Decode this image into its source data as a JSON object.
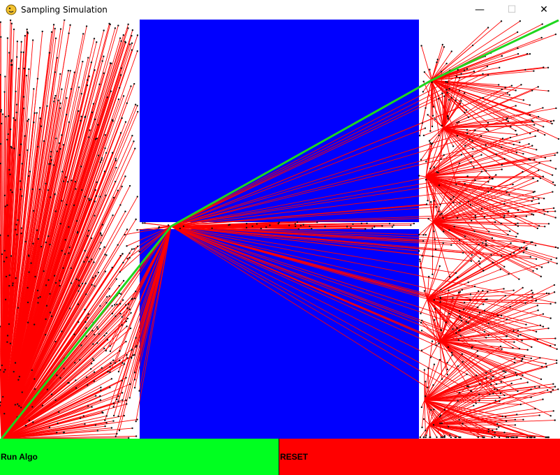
{
  "window": {
    "title": "Sampling Simulation",
    "icon": "pygame-snake-icon",
    "controls": {
      "minimize": "—",
      "maximize": "☐",
      "close": "✕"
    }
  },
  "colors": {
    "background": "#ffffff",
    "obstacle": "#0000ff",
    "tree_edge": "#ff0000",
    "tree_node": "#111111",
    "path": "#1ed61e",
    "run_button": "#00ff20",
    "reset_button": "#ff0000"
  },
  "buttons": {
    "run_label": "Run Algo",
    "reset_label": "RESET"
  }
}
